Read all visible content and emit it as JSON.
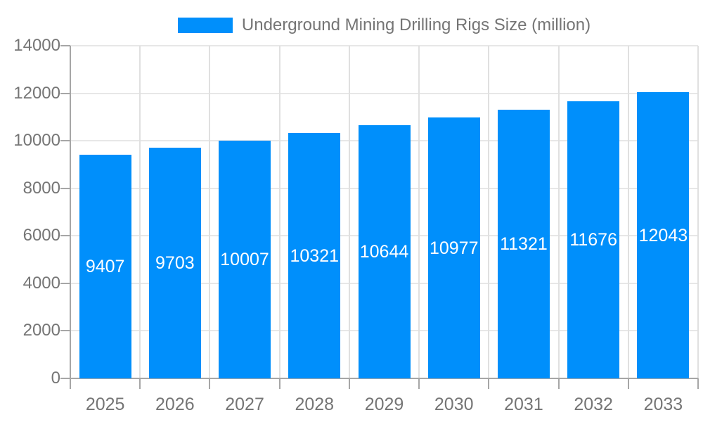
{
  "legend": {
    "label": "Underground Mining Drilling Rigs Size (million)"
  },
  "chart_data": {
    "type": "bar",
    "title": "Underground Mining Drilling Rigs Size (million)",
    "categories": [
      "2025",
      "2026",
      "2027",
      "2028",
      "2029",
      "2030",
      "2031",
      "2032",
      "2033"
    ],
    "series": [
      {
        "name": "Underground Mining Drilling Rigs Size (million)",
        "values": [
          9407,
          9703,
          10007,
          10321,
          10644,
          10977,
          11321,
          11676,
          12043
        ]
      }
    ],
    "xlabel": "",
    "ylabel": "",
    "ylim": [
      0,
      14000
    ],
    "y_ticks": [
      0,
      2000,
      4000,
      6000,
      8000,
      10000,
      12000,
      14000
    ],
    "grid": "on",
    "legend_position": "top",
    "value_labels": "inside-center"
  },
  "colors": {
    "bar": "#008FFB",
    "value_label": "#ffffff",
    "axis_line": "#a6a6a6",
    "grid_h": "#e7e7e7",
    "grid_v": "#e0e0e0",
    "text": "#757575"
  }
}
